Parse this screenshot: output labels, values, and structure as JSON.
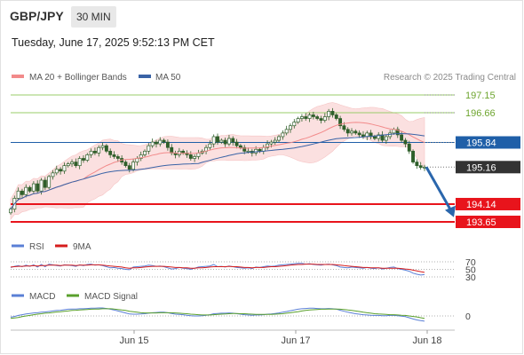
{
  "header": {
    "pair": "GBP/JPY",
    "timeframe": "30 MIN",
    "datetime": "Tuesday, June 17, 2025 9:52:13 PM CET"
  },
  "colors": {
    "ma20": "#f28a8a",
    "bollinger_fill": "#fbe0e0",
    "ma50": "#3a63a6",
    "candle": "#2f5f2a",
    "resistance": "#9acd6a",
    "pivot": "#1f5fa8",
    "support": "#e8141c",
    "current": "#333333",
    "arrow": "#2a66ac",
    "rsi": "#5a7fd6",
    "rsi_9ma": "#d61d1d",
    "macd": "#5a7fd6",
    "macd_signal": "#5aa02c"
  },
  "chart_data": {
    "type": "candlestick",
    "legend": {
      "ma20": "MA 20 + Bollinger Bands",
      "ma50": "MA 50",
      "credit": "Research © 2025 Trading Central"
    },
    "price_levels": [
      {
        "value": 197.15,
        "label": "197.15",
        "kind": "resistance"
      },
      {
        "value": 196.66,
        "label": "196.66",
        "kind": "resistance"
      },
      {
        "value": 195.84,
        "label": "195.84",
        "kind": "pivot"
      },
      {
        "value": 195.16,
        "label": "195.16",
        "kind": "current"
      },
      {
        "value": 194.14,
        "label": "194.14",
        "kind": "support"
      },
      {
        "value": 193.65,
        "label": "193.65",
        "kind": "support"
      }
    ],
    "forecast_arrow": {
      "from": 195.16,
      "to": 193.78,
      "direction": "down"
    },
    "x_ticks": [
      "Jun 15",
      "Jun 17",
      "Jun 18"
    ],
    "close": [
      194.0,
      194.3,
      194.5,
      194.4,
      194.6,
      194.5,
      194.7,
      194.5,
      194.8,
      194.6,
      194.9,
      195.0,
      195.1,
      195.05,
      195.2,
      195.25,
      195.3,
      195.2,
      195.4,
      195.35,
      195.5,
      195.6,
      195.55,
      195.7,
      195.75,
      195.6,
      195.5,
      195.45,
      195.4,
      195.3,
      195.2,
      195.1,
      195.3,
      195.4,
      195.5,
      195.6,
      195.75,
      195.85,
      195.8,
      195.9,
      195.85,
      195.7,
      195.55,
      195.5,
      195.6,
      195.55,
      195.5,
      195.4,
      195.45,
      195.55,
      195.6,
      195.7,
      195.8,
      196.0,
      195.85,
      195.9,
      195.8,
      195.95,
      195.85,
      195.75,
      195.7,
      195.6,
      195.6,
      195.55,
      195.65,
      195.6,
      195.7,
      195.8,
      195.85,
      195.9,
      196.0,
      196.1,
      196.2,
      196.3,
      196.4,
      196.5,
      196.55,
      196.5,
      196.6,
      196.55,
      196.5,
      196.45,
      196.55,
      196.7,
      196.6,
      196.5,
      196.3,
      196.2,
      196.1,
      196.15,
      196.1,
      196.05,
      196.0,
      196.1,
      196.0,
      195.95,
      196.05,
      195.9,
      196.0,
      196.1,
      196.2,
      196.05,
      195.9,
      195.8,
      195.6,
      195.3,
      195.2,
      195.15,
      195.16
    ],
    "rsi_levels": [
      "70",
      "50",
      "30"
    ],
    "rsi_legend": {
      "rsi": "RSI",
      "ma": "9MA"
    },
    "rsi": [
      55,
      58,
      60,
      57,
      61,
      58,
      62,
      56,
      63,
      57,
      64,
      62,
      60,
      59,
      62,
      61,
      60,
      58,
      62,
      60,
      63,
      64,
      61,
      62,
      60,
      57,
      54,
      55,
      53,
      52,
      50,
      49,
      56,
      57,
      58,
      59,
      61,
      60,
      58,
      59,
      57,
      54,
      51,
      52,
      55,
      53,
      52,
      50,
      53,
      56,
      57,
      58,
      59,
      63,
      57,
      58,
      56,
      59,
      57,
      55,
      54,
      53,
      54,
      52,
      56,
      55,
      57,
      59,
      58,
      59,
      61,
      62,
      63,
      64,
      65,
      66,
      66,
      64,
      65,
      63,
      62,
      61,
      63,
      64,
      62,
      60,
      56,
      55,
      54,
      56,
      55,
      54,
      53,
      55,
      53,
      52,
      54,
      51,
      53,
      55,
      56,
      52,
      50,
      48,
      45,
      40,
      37,
      35,
      36
    ],
    "rsi_ma": [
      56,
      57,
      58,
      58,
      59,
      59,
      60,
      59,
      60,
      60,
      61,
      61,
      61,
      60,
      61,
      61,
      61,
      60,
      61,
      61,
      61,
      62,
      62,
      62,
      61,
      60,
      59,
      58,
      57,
      56,
      54,
      53,
      54,
      54,
      55,
      56,
      57,
      58,
      58,
      58,
      58,
      57,
      56,
      55,
      55,
      54,
      54,
      53,
      53,
      54,
      54,
      55,
      56,
      57,
      57,
      57,
      57,
      58,
      57,
      57,
      56,
      55,
      55,
      54,
      55,
      55,
      55,
      56,
      57,
      57,
      58,
      59,
      60,
      61,
      62,
      63,
      63,
      64,
      64,
      64,
      63,
      63,
      63,
      63,
      63,
      62,
      61,
      60,
      59,
      58,
      57,
      56,
      55,
      55,
      54,
      54,
      54,
      53,
      53,
      53,
      53,
      53,
      52,
      51,
      50,
      48,
      46,
      44,
      42
    ],
    "macd_zero_label": "0",
    "macd_legend": {
      "macd": "MACD",
      "signal": "MACD Signal"
    },
    "macd": [
      -0.05,
      -0.02,
      0.02,
      0.05,
      0.08,
      0.1,
      0.12,
      0.13,
      0.15,
      0.16,
      0.18,
      0.2,
      0.22,
      0.23,
      0.25,
      0.27,
      0.28,
      0.28,
      0.29,
      0.29,
      0.3,
      0.31,
      0.31,
      0.32,
      0.32,
      0.3,
      0.27,
      0.24,
      0.2,
      0.16,
      0.12,
      0.08,
      0.07,
      0.07,
      0.08,
      0.09,
      0.11,
      0.13,
      0.14,
      0.15,
      0.15,
      0.13,
      0.1,
      0.07,
      0.06,
      0.05,
      0.03,
      0.01,
      0.0,
      0.0,
      0.01,
      0.03,
      0.05,
      0.09,
      0.1,
      0.11,
      0.11,
      0.12,
      0.11,
      0.09,
      0.07,
      0.05,
      0.04,
      0.03,
      0.04,
      0.04,
      0.05,
      0.07,
      0.08,
      0.1,
      0.12,
      0.15,
      0.18,
      0.21,
      0.24,
      0.27,
      0.29,
      0.3,
      0.31,
      0.31,
      0.3,
      0.29,
      0.29,
      0.3,
      0.29,
      0.27,
      0.23,
      0.19,
      0.15,
      0.12,
      0.09,
      0.07,
      0.05,
      0.04,
      0.03,
      0.02,
      0.02,
      0.01,
      0.01,
      0.02,
      0.02,
      0.01,
      -0.01,
      -0.03,
      -0.07,
      -0.12,
      -0.16,
      -0.19,
      -0.21
    ],
    "macd_signal": [
      -0.1,
      -0.08,
      -0.06,
      -0.03,
      0.0,
      0.02,
      0.05,
      0.07,
      0.09,
      0.11,
      0.12,
      0.14,
      0.16,
      0.17,
      0.19,
      0.2,
      0.22,
      0.23,
      0.24,
      0.25,
      0.26,
      0.27,
      0.28,
      0.28,
      0.29,
      0.29,
      0.29,
      0.28,
      0.26,
      0.24,
      0.22,
      0.19,
      0.17,
      0.15,
      0.13,
      0.12,
      0.12,
      0.12,
      0.12,
      0.13,
      0.13,
      0.13,
      0.13,
      0.12,
      0.11,
      0.1,
      0.09,
      0.07,
      0.06,
      0.05,
      0.04,
      0.04,
      0.04,
      0.05,
      0.06,
      0.07,
      0.08,
      0.09,
      0.1,
      0.1,
      0.09,
      0.09,
      0.08,
      0.07,
      0.06,
      0.06,
      0.06,
      0.06,
      0.06,
      0.07,
      0.08,
      0.09,
      0.11,
      0.13,
      0.15,
      0.17,
      0.2,
      0.22,
      0.24,
      0.25,
      0.26,
      0.27,
      0.27,
      0.28,
      0.28,
      0.28,
      0.27,
      0.26,
      0.24,
      0.22,
      0.2,
      0.18,
      0.15,
      0.13,
      0.11,
      0.09,
      0.08,
      0.07,
      0.06,
      0.05,
      0.05,
      0.04,
      0.03,
      0.02,
      0.0,
      -0.02,
      -0.04,
      -0.07,
      -0.1
    ]
  }
}
